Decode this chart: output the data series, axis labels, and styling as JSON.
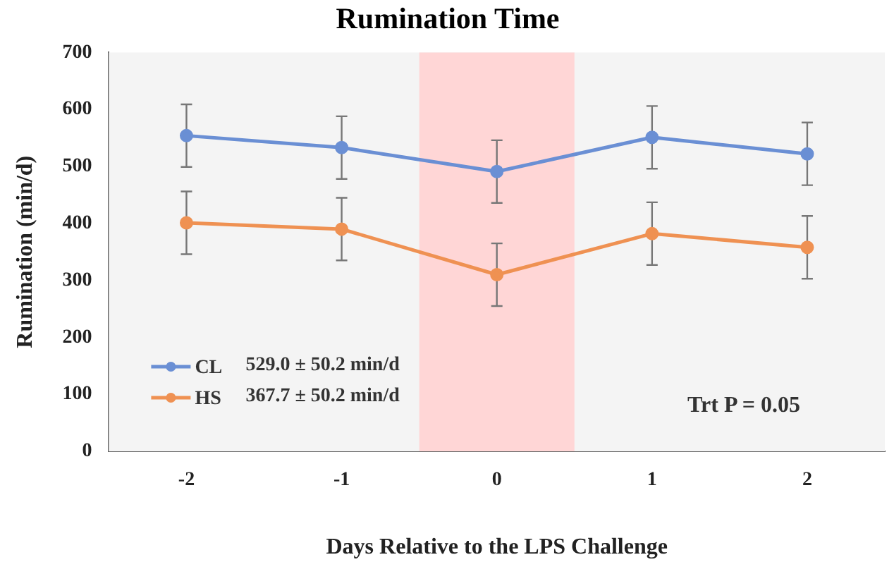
{
  "chart_data": {
    "type": "line",
    "title": "Rumination Time",
    "xlabel": "Days Relative to the LPS Challenge",
    "ylabel": "Rumination (min/d)",
    "x": [
      -2,
      -1,
      0,
      1,
      2
    ],
    "xlim": [
      -2.5,
      2.5
    ],
    "xticks": [
      -2,
      -1,
      0,
      1,
      2
    ],
    "ylim": [
      0,
      700
    ],
    "yticks": [
      0,
      100,
      200,
      300,
      400,
      500,
      600,
      700
    ],
    "series": [
      {
        "name": "CL",
        "color": "#6a8fd4",
        "values": [
          554,
          533,
          491,
          551,
          522
        ],
        "errors": [
          55,
          55,
          55,
          55,
          55
        ]
      },
      {
        "name": "HS",
        "color": "#ef9152",
        "values": [
          401,
          390,
          310,
          382,
          358
        ],
        "errors": [
          55,
          55,
          55,
          55,
          55
        ]
      }
    ],
    "bands": [
      {
        "axis": "x",
        "from": -0.5,
        "to": 0.5,
        "color": "#ffd6d6"
      }
    ],
    "annotations": [
      "529.0 ± 50.2 min/d",
      "367.7 ± 50.2 min/d",
      "Trt P = 0.05"
    ],
    "marker": "circle",
    "legend": "bottom left",
    "grid": false
  }
}
